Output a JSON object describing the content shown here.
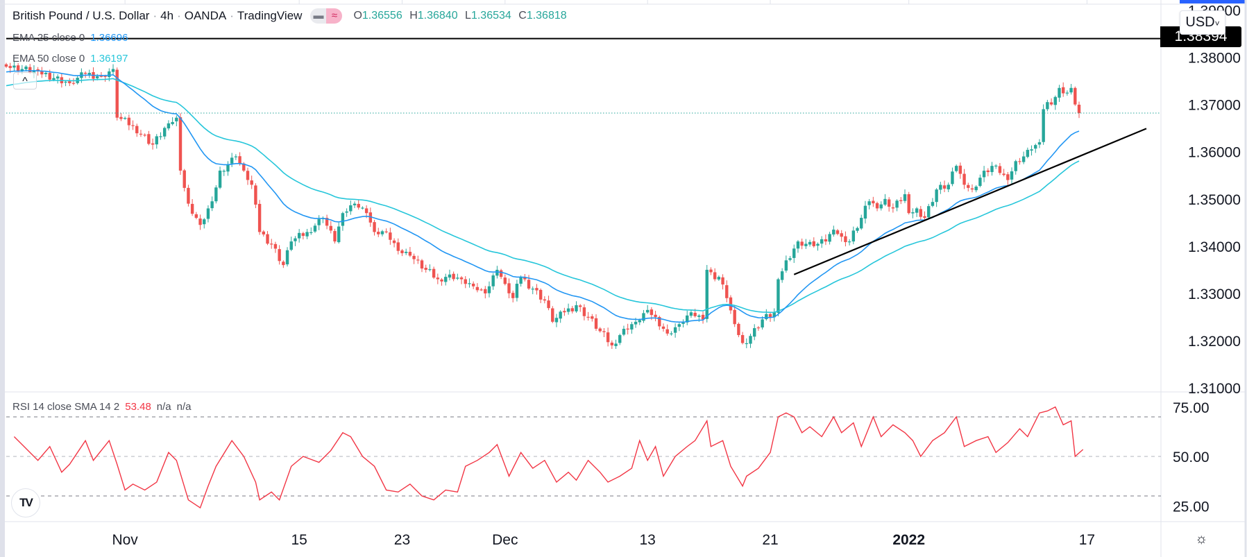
{
  "header": {
    "symbol": "British Pound / U.S. Dollar",
    "interval": "4h",
    "exchange": "OANDA",
    "source": "TradingView",
    "dot": "·",
    "toggle_icons": [
      "minus-icon",
      "approx-icon"
    ],
    "toggle_glyphs": [
      "▬",
      "≈"
    ],
    "ohlc": [
      {
        "key": "O",
        "value": "1.36556"
      },
      {
        "key": "H",
        "value": "1.36840"
      },
      {
        "key": "L",
        "value": "1.36534"
      },
      {
        "key": "C",
        "value": "1.36818"
      }
    ]
  },
  "indicators": {
    "ema25": {
      "label": "EMA 25 close 0",
      "value": "1.36696",
      "color": "#2196f3"
    },
    "ema50": {
      "label": "EMA 50 close 0",
      "value": "1.36197",
      "color": "#26c6da"
    },
    "rsi": {
      "label": "RSI 14 close SMA 14 2",
      "value": "53.48",
      "na1": "n/a",
      "na2": "n/a",
      "color": "#f23645"
    }
  },
  "controls": {
    "hide_glyph": "^",
    "currency": "USD",
    "currency_caret": "˅",
    "logo": "TV",
    "settings_glyph": "☼"
  },
  "colors": {
    "up": "#26a69a",
    "down": "#ef5350",
    "trend": "#000000",
    "last_price": "#26a69a"
  },
  "chart_data": {
    "type": "candlestick",
    "title": "British Pound / U.S. Dollar · 4h · OANDA",
    "price_range": [
      1.3082,
      1.392
    ],
    "y_ticks": [
      "1.39000",
      "1.38000",
      "1.37000",
      "1.36000",
      "1.35000",
      "1.34000",
      "1.33000",
      "1.32000",
      "1.31000"
    ],
    "y_tick_values": [
      1.39,
      1.38,
      1.37,
      1.36,
      1.35,
      1.34,
      1.33,
      1.32,
      1.31
    ],
    "bars_total": 272,
    "x_ticks": [
      {
        "label": "Nov",
        "bar": 30,
        "bold": false
      },
      {
        "label": "15",
        "bar": 74,
        "bold": false
      },
      {
        "label": "23",
        "bar": 100,
        "bold": false
      },
      {
        "label": "Dec",
        "bar": 126,
        "bold": false
      },
      {
        "label": "13",
        "bar": 162,
        "bold": false
      },
      {
        "label": "21",
        "bar": 193,
        "bold": false
      },
      {
        "label": "2022",
        "bar": 228,
        "bold": true
      },
      {
        "label": "17",
        "bar": 273,
        "bold": false
      }
    ],
    "close_keypoints": [
      [
        0,
        1.378
      ],
      [
        8,
        1.377
      ],
      [
        16,
        1.3745
      ],
      [
        20,
        1.3765
      ],
      [
        24,
        1.376
      ],
      [
        27,
        1.3775
      ],
      [
        28,
        1.3672
      ],
      [
        32,
        1.3655
      ],
      [
        37,
        1.3615
      ],
      [
        41,
        1.366
      ],
      [
        43,
        1.3672
      ],
      [
        44,
        1.356
      ],
      [
        46,
        1.349
      ],
      [
        49,
        1.3445
      ],
      [
        52,
        1.3495
      ],
      [
        54,
        1.356
      ],
      [
        58,
        1.359
      ],
      [
        60,
        1.356
      ],
      [
        62,
        1.353
      ],
      [
        64,
        1.343
      ],
      [
        67,
        1.3405
      ],
      [
        70,
        1.336
      ],
      [
        72,
        1.341
      ],
      [
        76,
        1.343
      ],
      [
        80,
        1.346
      ],
      [
        83,
        1.341
      ],
      [
        85,
        1.347
      ],
      [
        88,
        1.349
      ],
      [
        91,
        1.347
      ],
      [
        93,
        1.343
      ],
      [
        96,
        1.343
      ],
      [
        99,
        1.339
      ],
      [
        102,
        1.338
      ],
      [
        106,
        1.335
      ],
      [
        109,
        1.333
      ],
      [
        112,
        1.334
      ],
      [
        115,
        1.333
      ],
      [
        118,
        1.3315
      ],
      [
        121,
        1.33
      ],
      [
        124,
        1.335
      ],
      [
        126,
        1.332
      ],
      [
        128,
        1.329
      ],
      [
        130,
        1.3335
      ],
      [
        133,
        1.331
      ],
      [
        136,
        1.3285
      ],
      [
        138,
        1.324
      ],
      [
        141,
        1.326
      ],
      [
        144,
        1.3275
      ],
      [
        147,
        1.325
      ],
      [
        150,
        1.322
      ],
      [
        153,
        1.319
      ],
      [
        156,
        1.3225
      ],
      [
        159,
        1.324
      ],
      [
        162,
        1.3265
      ],
      [
        164,
        1.325
      ],
      [
        167,
        1.3215
      ],
      [
        170,
        1.3235
      ],
      [
        173,
        1.326
      ],
      [
        176,
        1.3245
      ],
      [
        177,
        1.335
      ],
      [
        179,
        1.333
      ],
      [
        180,
        1.3335
      ],
      [
        182,
        1.329
      ],
      [
        184,
        1.3235
      ],
      [
        186,
        1.3195
      ],
      [
        188,
        1.321
      ],
      [
        191,
        1.3245
      ],
      [
        194,
        1.326
      ],
      [
        195,
        1.333
      ],
      [
        197,
        1.337
      ],
      [
        199,
        1.3395
      ],
      [
        200,
        1.341
      ],
      [
        202,
        1.3405
      ],
      [
        204,
        1.34
      ],
      [
        207,
        1.341
      ],
      [
        209,
        1.3435
      ],
      [
        211,
        1.342
      ],
      [
        213,
        1.341
      ],
      [
        216,
        1.346
      ],
      [
        218,
        1.3495
      ],
      [
        220,
        1.348
      ],
      [
        222,
        1.35
      ],
      [
        224,
        1.348
      ],
      [
        227,
        1.351
      ],
      [
        228,
        1.347
      ],
      [
        230,
        1.348
      ],
      [
        232,
        1.346
      ],
      [
        235,
        1.352
      ],
      [
        238,
        1.353
      ],
      [
        240,
        1.357
      ],
      [
        242,
        1.353
      ],
      [
        244,
        1.352
      ],
      [
        246,
        1.3545
      ],
      [
        249,
        1.357
      ],
      [
        251,
        1.3555
      ],
      [
        253,
        1.354
      ],
      [
        255,
        1.358
      ],
      [
        257,
        1.359
      ],
      [
        259,
        1.3605
      ],
      [
        261,
        1.362
      ],
      [
        262,
        1.369
      ],
      [
        263,
        1.3705
      ],
      [
        264,
        1.37
      ],
      [
        266,
        1.3735
      ],
      [
        268,
        1.3725
      ],
      [
        269,
        1.3735
      ],
      [
        270,
        1.37
      ],
      [
        271,
        1.3655
      ],
      [
        272,
        1.3682
      ]
    ],
    "ema_seeds": {
      "ema25": 1.3768,
      "ema50": 1.3738
    },
    "ema_periods": {
      "ema25": 25,
      "ema50": 50
    },
    "last_price": 1.36818,
    "horizontal_line": {
      "price": 1.38394,
      "label": "1.38394"
    },
    "trendline": {
      "from": [
        199,
        1.334
      ],
      "to": [
        288,
        1.3649
      ]
    },
    "rsi": {
      "range": [
        17,
        82
      ],
      "y_ticks": [
        "75.00",
        "50.00",
        "25.00"
      ],
      "y_tick_values": [
        75,
        50,
        25
      ],
      "bands": [
        70,
        50,
        30
      ],
      "keypoints": [
        [
          2,
          60
        ],
        [
          4,
          56
        ],
        [
          8,
          48
        ],
        [
          11,
          55
        ],
        [
          14,
          42
        ],
        [
          16,
          46
        ],
        [
          20,
          58
        ],
        [
          22,
          48
        ],
        [
          26,
          58
        ],
        [
          28,
          46
        ],
        [
          30,
          33
        ],
        [
          32,
          36
        ],
        [
          35,
          33
        ],
        [
          38,
          37
        ],
        [
          41,
          52
        ],
        [
          43,
          48
        ],
        [
          46,
          28
        ],
        [
          49,
          24
        ],
        [
          51,
          35
        ],
        [
          53,
          45
        ],
        [
          57,
          58
        ],
        [
          60,
          50
        ],
        [
          63,
          37
        ],
        [
          64,
          28
        ],
        [
          67,
          32
        ],
        [
          69,
          28
        ],
        [
          72,
          45
        ],
        [
          75,
          50
        ],
        [
          79,
          47
        ],
        [
          82,
          53
        ],
        [
          85,
          62
        ],
        [
          87,
          60
        ],
        [
          90,
          50
        ],
        [
          93,
          45
        ],
        [
          96,
          33
        ],
        [
          99,
          32
        ],
        [
          102,
          36
        ],
        [
          105,
          30
        ],
        [
          108,
          28
        ],
        [
          111,
          33
        ],
        [
          114,
          32
        ],
        [
          116,
          45
        ],
        [
          119,
          48
        ],
        [
          122,
          52
        ],
        [
          124,
          56
        ],
        [
          127,
          40
        ],
        [
          130,
          52
        ],
        [
          133,
          44
        ],
        [
          136,
          48
        ],
        [
          139,
          37
        ],
        [
          142,
          42
        ],
        [
          144,
          38
        ],
        [
          147,
          48
        ],
        [
          150,
          42
        ],
        [
          152,
          37
        ],
        [
          155,
          40
        ],
        [
          158,
          44
        ],
        [
          160,
          58
        ],
        [
          162,
          48
        ],
        [
          164,
          55
        ],
        [
          166,
          40
        ],
        [
          169,
          50
        ],
        [
          172,
          55
        ],
        [
          174,
          58
        ],
        [
          177,
          68
        ],
        [
          178,
          55
        ],
        [
          181,
          58
        ],
        [
          183,
          45
        ],
        [
          186,
          35
        ],
        [
          187,
          40
        ],
        [
          190,
          44
        ],
        [
          193,
          52
        ],
        [
          195,
          70
        ],
        [
          197,
          72
        ],
        [
          199,
          70
        ],
        [
          201,
          62
        ],
        [
          203,
          65
        ],
        [
          206,
          60
        ],
        [
          209,
          70
        ],
        [
          211,
          62
        ],
        [
          214,
          67
        ],
        [
          216,
          55
        ],
        [
          219,
          70
        ],
        [
          221,
          60
        ],
        [
          224,
          66
        ],
        [
          227,
          62
        ],
        [
          229,
          58
        ],
        [
          231,
          50
        ],
        [
          234,
          58
        ],
        [
          237,
          62
        ],
        [
          240,
          70
        ],
        [
          242,
          55
        ],
        [
          245,
          58
        ],
        [
          248,
          60
        ],
        [
          250,
          52
        ],
        [
          253,
          57
        ],
        [
          256,
          64
        ],
        [
          258,
          60
        ],
        [
          261,
          72
        ],
        [
          263,
          73
        ],
        [
          265,
          75
        ],
        [
          267,
          66
        ],
        [
          269,
          68
        ],
        [
          270,
          50
        ],
        [
          272,
          53.5
        ]
      ]
    }
  }
}
